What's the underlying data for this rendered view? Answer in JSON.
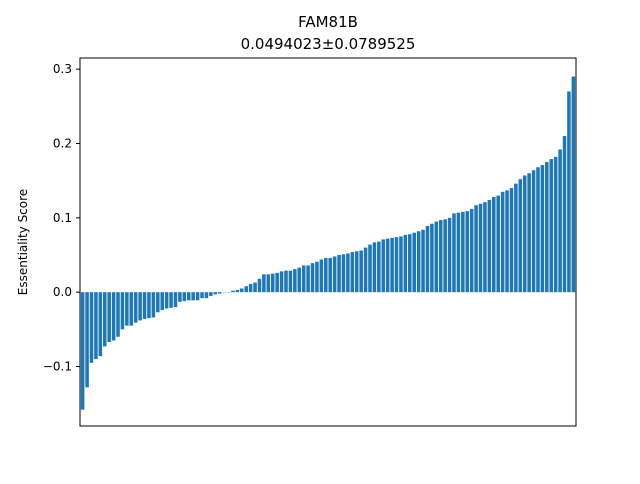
{
  "chart_data": {
    "type": "bar",
    "title": "FAM81B",
    "subtitle": "0.0494023±0.0789525",
    "xlabel": "",
    "ylabel": "Essentiality Score",
    "ylim": [
      0.315,
      -0.18
    ],
    "y_inverted": true,
    "yticks": [
      -0.1,
      0.0,
      0.1,
      0.2,
      0.3
    ],
    "ytick_labels": [
      "−0.1",
      "0.0",
      "0.1",
      "0.2",
      "0.3"
    ],
    "x_ticks_visible": false,
    "grid": false,
    "bar_color": "#1f77b4",
    "values": [
      -0.158,
      -0.128,
      -0.095,
      -0.09,
      -0.086,
      -0.073,
      -0.067,
      -0.065,
      -0.06,
      -0.05,
      -0.045,
      -0.045,
      -0.041,
      -0.038,
      -0.036,
      -0.035,
      -0.034,
      -0.027,
      -0.024,
      -0.022,
      -0.021,
      -0.02,
      -0.013,
      -0.012,
      -0.011,
      -0.011,
      -0.011,
      -0.008,
      -0.008,
      -0.005,
      -0.003,
      -0.002,
      0.0,
      0.0,
      0.002,
      0.003,
      0.005,
      0.008,
      0.011,
      0.013,
      0.018,
      0.024,
      0.024,
      0.025,
      0.026,
      0.028,
      0.029,
      0.029,
      0.031,
      0.033,
      0.036,
      0.036,
      0.039,
      0.041,
      0.044,
      0.046,
      0.046,
      0.048,
      0.05,
      0.051,
      0.052,
      0.054,
      0.055,
      0.056,
      0.06,
      0.064,
      0.067,
      0.068,
      0.071,
      0.072,
      0.073,
      0.074,
      0.075,
      0.077,
      0.078,
      0.08,
      0.082,
      0.084,
      0.089,
      0.092,
      0.095,
      0.097,
      0.098,
      0.1,
      0.106,
      0.107,
      0.108,
      0.109,
      0.112,
      0.117,
      0.119,
      0.121,
      0.124,
      0.128,
      0.13,
      0.135,
      0.137,
      0.14,
      0.146,
      0.152,
      0.157,
      0.16,
      0.164,
      0.168,
      0.171,
      0.175,
      0.179,
      0.182,
      0.192,
      0.21,
      0.27,
      0.29
    ]
  }
}
